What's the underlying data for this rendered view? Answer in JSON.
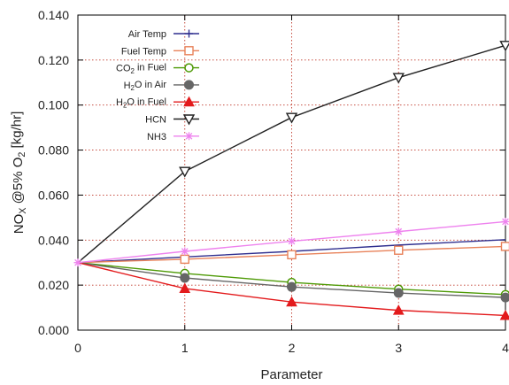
{
  "chart_data": {
    "type": "line",
    "title": "",
    "xlabel": "Parameter",
    "ylabel": {
      "parts": [
        {
          "text": "NO",
          "sub": false
        },
        {
          "text": "X",
          "sub": true
        },
        {
          "text": " @5% O",
          "sub": false
        },
        {
          "text": "2",
          "sub": true
        },
        {
          "text": " [kg/hr]",
          "sub": false
        }
      ]
    },
    "x": [
      0,
      1,
      2,
      3,
      4
    ],
    "xlim": [
      0,
      4
    ],
    "ylim": [
      0,
      0.14
    ],
    "x_ticks": [
      "0",
      "1",
      "2",
      "3",
      "4"
    ],
    "y_ticks": [
      "0.000",
      "0.020",
      "0.040",
      "0.060",
      "0.080",
      "0.100",
      "0.120",
      "0.140"
    ],
    "grid": true,
    "legend_placement": "top-left",
    "series": [
      {
        "name": "Air Temp",
        "name_parts": [
          {
            "text": "Air Temp",
            "sub": false
          }
        ],
        "color": "#2f2f8f",
        "marker": "plus",
        "markers_shown": false,
        "values": [
          0.03,
          0.0325,
          0.035,
          0.0378,
          0.0402
        ]
      },
      {
        "name": "Fuel Temp",
        "name_parts": [
          {
            "text": "Fuel Temp",
            "sub": false
          }
        ],
        "color": "#e8825a",
        "marker": "square-open",
        "markers_shown": true,
        "values": [
          0.03,
          0.0315,
          0.0335,
          0.0355,
          0.0372
        ]
      },
      {
        "name": "CO2 in Fuel",
        "name_parts": [
          {
            "text": "CO",
            "sub": false
          },
          {
            "text": "2",
            "sub": true
          },
          {
            "text": " in Fuel",
            "sub": false
          }
        ],
        "color": "#4e9a06",
        "marker": "circle-open",
        "markers_shown": true,
        "values": [
          0.03,
          0.0252,
          0.0212,
          0.0182,
          0.0158
        ]
      },
      {
        "name": "H2O in Air",
        "name_parts": [
          {
            "text": "H",
            "sub": false
          },
          {
            "text": "2",
            "sub": true
          },
          {
            "text": "O in Air",
            "sub": false
          }
        ],
        "color": "#666666",
        "marker": "circle-filled",
        "markers_shown": true,
        "values": [
          0.03,
          0.0232,
          0.0192,
          0.0165,
          0.0145
        ]
      },
      {
        "name": "H2O in Fuel",
        "name_parts": [
          {
            "text": "H",
            "sub": false
          },
          {
            "text": "2",
            "sub": true
          },
          {
            "text": "O in Fuel",
            "sub": false
          }
        ],
        "color": "#e31a1c",
        "marker": "triangle-filled",
        "markers_shown": true,
        "values": [
          0.03,
          0.0185,
          0.0125,
          0.0088,
          0.0065
        ]
      },
      {
        "name": "HCN",
        "name_parts": [
          {
            "text": "HCN",
            "sub": false
          }
        ],
        "color": "#222222",
        "marker": "triangle-down-open",
        "markers_shown": true,
        "values": [
          0.03,
          0.0705,
          0.0945,
          0.1122,
          0.1265
        ]
      },
      {
        "name": "NH3",
        "name_parts": [
          {
            "text": "NH3",
            "sub": false
          }
        ],
        "color": "#ee82ee",
        "marker": "star",
        "markers_shown": true,
        "values": [
          0.03,
          0.035,
          0.0395,
          0.0438,
          0.0482
        ]
      }
    ]
  }
}
